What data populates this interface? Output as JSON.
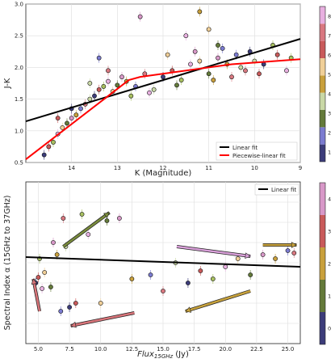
{
  "chart_data": [
    {
      "type": "scatter",
      "xlabel": "K (Magnitude)",
      "ylabel": "J-K",
      "xlim": [
        15,
        9
      ],
      "ylim": [
        0.5,
        3.0
      ],
      "xticks": [
        14,
        13,
        12,
        11,
        10,
        9
      ],
      "yticks": [
        0.5,
        1.0,
        1.5,
        2.0,
        2.5,
        3.0
      ],
      "grid": true,
      "legend_position": "lower-right",
      "colorbar_ticks": [
        1,
        2,
        3,
        4,
        5,
        6,
        7,
        8
      ],
      "series": [
        {
          "name": "Linear fit",
          "color": "#000000",
          "x": [
            15,
            9
          ],
          "y": [
            1.15,
            2.45
          ]
        },
        {
          "name": "Piecewise-linear fit",
          "color": "#ff0000",
          "x": [
            15,
            12.75,
            12.5,
            10.5,
            9
          ],
          "y": [
            0.55,
            1.8,
            1.85,
            2.05,
            2.13
          ]
        }
      ],
      "points": [
        [
          14.6,
          0.62
        ],
        [
          14.5,
          0.75
        ],
        [
          14.4,
          0.82
        ],
        [
          14.3,
          0.95
        ],
        [
          14.2,
          1.05
        ],
        [
          14.1,
          1.12
        ],
        [
          14.0,
          1.2
        ],
        [
          13.9,
          1.25
        ],
        [
          13.8,
          1.35
        ],
        [
          13.7,
          1.42
        ],
        [
          13.6,
          1.5
        ],
        [
          13.5,
          1.55
        ],
        [
          13.4,
          1.65
        ],
        [
          13.3,
          1.7
        ],
        [
          13.2,
          1.78
        ],
        [
          13.1,
          1.62
        ],
        [
          13.0,
          1.72
        ],
        [
          12.9,
          1.85
        ],
        [
          12.8,
          1.78
        ],
        [
          12.6,
          1.7
        ],
        [
          12.4,
          1.9
        ],
        [
          12.2,
          1.65
        ],
        [
          12.0,
          1.85
        ],
        [
          11.8,
          1.95
        ],
        [
          11.6,
          1.8
        ],
        [
          11.4,
          2.05
        ],
        [
          11.2,
          2.1
        ],
        [
          11.0,
          1.9
        ],
        [
          10.8,
          2.15
        ],
        [
          10.6,
          2.05
        ],
        [
          10.4,
          2.2
        ],
        [
          10.2,
          1.95
        ],
        [
          10.0,
          2.1
        ],
        [
          9.8,
          2.05
        ],
        [
          9.5,
          2.2
        ],
        [
          9.2,
          2.15
        ],
        [
          11.5,
          2.5
        ],
        [
          11.0,
          2.6
        ],
        [
          10.8,
          2.35
        ],
        [
          12.5,
          2.8
        ],
        [
          11.2,
          2.88
        ],
        [
          13.4,
          2.15
        ],
        [
          13.2,
          1.95
        ],
        [
          13.6,
          1.75
        ],
        [
          14.0,
          1.35
        ],
        [
          14.3,
          1.2
        ],
        [
          12.7,
          1.55
        ],
        [
          12.3,
          1.6
        ],
        [
          11.9,
          2.2
        ],
        [
          11.7,
          1.72
        ],
        [
          11.3,
          2.25
        ],
        [
          10.9,
          1.8
        ],
        [
          10.7,
          2.3
        ],
        [
          10.5,
          1.85
        ],
        [
          10.3,
          2.0
        ],
        [
          10.1,
          2.25
        ],
        [
          9.9,
          1.9
        ],
        [
          9.6,
          2.35
        ],
        [
          9.3,
          1.95
        ]
      ]
    },
    {
      "type": "scatter",
      "xlabel": "Flux",
      "xlabel_subscript": "15GHz",
      "xlabel_unit": "(Jy)",
      "ylabel": "Spectral Index α (15GHz to 37GHz)",
      "xlim": [
        4.0,
        26.0
      ],
      "ylim": [
        -1.0,
        1.0
      ],
      "xticks": [
        5.0,
        7.5,
        10.0,
        12.5,
        15.0,
        17.5,
        20.0,
        22.5,
        25.0
      ],
      "xtick_labels": [
        "5.0",
        "7.5",
        "10.0",
        "12.5",
        "15.0",
        "17.5",
        "20.0",
        "22.5",
        "25.0"
      ],
      "grid": true,
      "legend_position": "top-right",
      "colorbar_ticks": [
        0,
        1,
        2,
        3,
        4
      ],
      "series": [
        {
          "name": "Linear fit",
          "color": "#000000",
          "x": [
            4.0,
            26.0
          ],
          "y": [
            0.07,
            -0.05
          ]
        }
      ],
      "points": [
        [
          4.8,
          -0.25
        ],
        [
          5.0,
          -0.18
        ],
        [
          5.1,
          0.05
        ],
        [
          5.3,
          -0.32
        ],
        [
          5.5,
          -0.12
        ],
        [
          6.0,
          -0.3
        ],
        [
          6.2,
          0.25
        ],
        [
          6.5,
          0.1
        ],
        [
          6.8,
          -0.6
        ],
        [
          7.0,
          0.55
        ],
        [
          7.2,
          0.2
        ],
        [
          7.5,
          -0.55
        ],
        [
          8.0,
          -0.5
        ],
        [
          8.5,
          0.6
        ],
        [
          9.0,
          0.35
        ],
        [
          10.0,
          -0.5
        ],
        [
          10.5,
          0.52
        ],
        [
          11.5,
          0.55
        ],
        [
          12.5,
          -0.2
        ],
        [
          14.0,
          -0.15
        ],
        [
          15.0,
          -0.35
        ],
        [
          16.0,
          0.0
        ],
        [
          17.0,
          -0.25
        ],
        [
          18.0,
          -0.1
        ],
        [
          19.0,
          -0.2
        ],
        [
          20.0,
          -0.05
        ],
        [
          21.0,
          0.05
        ],
        [
          22.0,
          -0.15
        ],
        [
          23.0,
          0.1
        ],
        [
          24.0,
          0.05
        ],
        [
          25.0,
          0.15
        ],
        [
          25.5,
          0.12
        ]
      ],
      "arrows": [
        {
          "from": [
            5.1,
            -0.6
          ],
          "to": [
            4.6,
            -0.2
          ],
          "color": "#d9757a"
        },
        {
          "from": [
            7.0,
            0.2
          ],
          "to": [
            10.7,
            0.62
          ],
          "color": "#7a8c3c"
        },
        {
          "from": [
            12.7,
            -0.62
          ],
          "to": [
            7.6,
            -0.78
          ],
          "color": "#d9757a"
        },
        {
          "from": [
            22.0,
            -0.35
          ],
          "to": [
            16.8,
            -0.6
          ],
          "color": "#c8a23c"
        },
        {
          "from": [
            16.1,
            0.2
          ],
          "to": [
            22.0,
            0.08
          ],
          "color": "#d9a0d9"
        },
        {
          "from": [
            23.0,
            0.22
          ],
          "to": [
            25.7,
            0.22
          ],
          "color": "#c8a23c"
        }
      ]
    }
  ]
}
